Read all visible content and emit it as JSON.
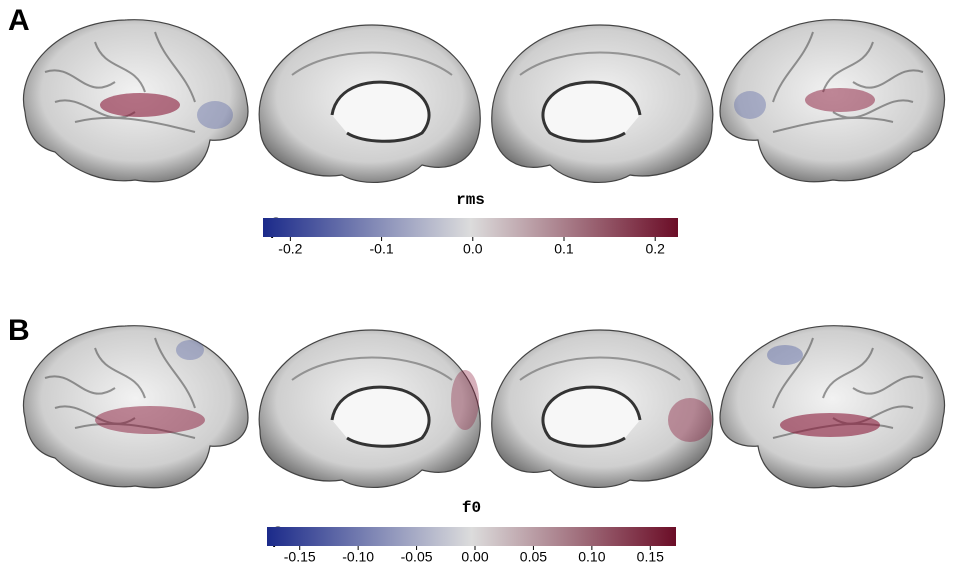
{
  "panels": [
    {
      "label": "A",
      "colorbar": {
        "title": "rms",
        "symbol": "β",
        "lim": [
          -0.23,
          0.225
        ],
        "ticks": [
          -0.2,
          -0.1,
          {
            "value": 0,
            "label": "0.0"
          },
          0.1,
          0.2
        ],
        "colormap": [
          "#1b2a8a",
          "#dcdcdc",
          "#6b0d27"
        ]
      }
    },
    {
      "label": "B",
      "colorbar": {
        "title": "f0",
        "symbol": "β",
        "lim": [
          -0.178,
          0.172
        ],
        "ticks": [
          -0.15,
          {
            "value": -0.1,
            "label": "-0.10"
          },
          -0.05,
          {
            "value": 0,
            "label": "0.00"
          },
          0.05,
          {
            "value": 0.1,
            "label": "0.10"
          },
          0.15
        ],
        "colormap": [
          "#1b2a8a",
          "#dcdcdc",
          "#6b0d27"
        ]
      }
    }
  ]
}
